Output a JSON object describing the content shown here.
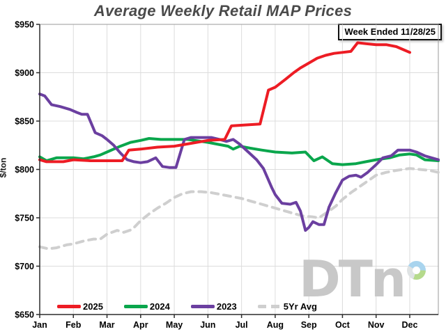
{
  "annotation": "Week Ended 11/28/25",
  "watermark": {
    "text": "DTn"
  },
  "chart_data": {
    "type": "line",
    "title": "Average Weekly Retail MAP Prices",
    "xlabel": "",
    "ylabel": "$/ton",
    "x_categories": [
      "Jan",
      "Feb",
      "Mar",
      "Apr",
      "May",
      "Jun",
      "Jul",
      "Aug",
      "Sep",
      "Oct",
      "Nov",
      "Dec"
    ],
    "x_max": 11.85,
    "ylim": [
      650,
      950
    ],
    "y_ticks": [
      650,
      700,
      750,
      800,
      850,
      900,
      950
    ],
    "y_tick_labels": [
      "$650",
      "$700",
      "$750",
      "$800",
      "$850",
      "$900",
      "$950"
    ],
    "grid": true,
    "legend_position": "bottom-left-inside",
    "series": [
      {
        "name": "2025",
        "color": "#ed1c24",
        "style": "solid",
        "z": 4,
        "points": [
          [
            0,
            810
          ],
          [
            0.2,
            808
          ],
          [
            0.45,
            808
          ],
          [
            0.7,
            808
          ],
          [
            1,
            810
          ],
          [
            1.5,
            809
          ],
          [
            2,
            809
          ],
          [
            2.45,
            809
          ],
          [
            2.65,
            820
          ],
          [
            3,
            821
          ],
          [
            3.5,
            823
          ],
          [
            4,
            824
          ],
          [
            4.5,
            827
          ],
          [
            5,
            830
          ],
          [
            5.5,
            831
          ],
          [
            5.7,
            845
          ],
          [
            6.1,
            846
          ],
          [
            6.55,
            847
          ],
          [
            6.8,
            882
          ],
          [
            7,
            885
          ],
          [
            7.3,
            893
          ],
          [
            7.55,
            900
          ],
          [
            7.75,
            905
          ],
          [
            8,
            910
          ],
          [
            8.25,
            915
          ],
          [
            8.5,
            918
          ],
          [
            8.75,
            920
          ],
          [
            9,
            921
          ],
          [
            9.25,
            922
          ],
          [
            9.45,
            931
          ],
          [
            9.7,
            930
          ],
          [
            10,
            929
          ],
          [
            10.3,
            929
          ],
          [
            10.6,
            927
          ],
          [
            10.8,
            924
          ],
          [
            11,
            921
          ]
        ]
      },
      {
        "name": "2024",
        "color": "#0aa64c",
        "style": "solid",
        "z": 2,
        "points": [
          [
            0,
            813
          ],
          [
            0.2,
            809
          ],
          [
            0.5,
            812
          ],
          [
            0.8,
            812
          ],
          [
            1,
            812
          ],
          [
            1.3,
            811
          ],
          [
            1.6,
            813
          ],
          [
            1.8,
            815
          ],
          [
            2,
            818
          ],
          [
            2.4,
            824
          ],
          [
            2.7,
            828
          ],
          [
            3,
            830
          ],
          [
            3.25,
            832
          ],
          [
            3.6,
            831
          ],
          [
            4,
            831
          ],
          [
            4.4,
            831
          ],
          [
            4.8,
            829
          ],
          [
            5,
            828
          ],
          [
            5.3,
            826
          ],
          [
            5.6,
            824
          ],
          [
            5.75,
            821
          ],
          [
            5.95,
            824
          ],
          [
            6.25,
            822
          ],
          [
            6.6,
            820
          ],
          [
            7,
            818
          ],
          [
            7.5,
            817
          ],
          [
            7.9,
            818
          ],
          [
            8.15,
            809
          ],
          [
            8.4,
            813
          ],
          [
            8.7,
            806
          ],
          [
            9,
            805
          ],
          [
            9.4,
            806
          ],
          [
            9.7,
            808
          ],
          [
            10,
            810
          ],
          [
            10.4,
            812
          ],
          [
            10.7,
            815
          ],
          [
            11,
            816
          ],
          [
            11.2,
            815
          ],
          [
            11.45,
            810
          ],
          [
            11.85,
            809
          ]
        ]
      },
      {
        "name": "2023",
        "color": "#6b3fa0",
        "style": "solid",
        "z": 3,
        "points": [
          [
            0,
            878
          ],
          [
            0.15,
            876
          ],
          [
            0.35,
            867
          ],
          [
            0.6,
            865
          ],
          [
            0.9,
            862
          ],
          [
            1.1,
            859
          ],
          [
            1.25,
            857
          ],
          [
            1.42,
            857
          ],
          [
            1.65,
            838
          ],
          [
            1.85,
            835
          ],
          [
            2,
            831
          ],
          [
            2.2,
            825
          ],
          [
            2.4,
            817
          ],
          [
            2.6,
            810
          ],
          [
            2.8,
            808
          ],
          [
            3,
            807
          ],
          [
            3.2,
            808
          ],
          [
            3.45,
            812
          ],
          [
            3.65,
            803
          ],
          [
            3.85,
            802
          ],
          [
            4.05,
            802
          ],
          [
            4.3,
            831
          ],
          [
            4.5,
            833
          ],
          [
            4.8,
            833
          ],
          [
            5.1,
            833
          ],
          [
            5.35,
            831
          ],
          [
            5.55,
            829
          ],
          [
            5.75,
            831
          ],
          [
            5.95,
            826
          ],
          [
            6.2,
            818
          ],
          [
            6.45,
            810
          ],
          [
            6.65,
            801
          ],
          [
            6.9,
            781
          ],
          [
            7,
            774
          ],
          [
            7.2,
            765
          ],
          [
            7.45,
            764
          ],
          [
            7.62,
            766
          ],
          [
            7.75,
            757
          ],
          [
            7.9,
            737
          ],
          [
            8,
            740
          ],
          [
            8.12,
            746
          ],
          [
            8.3,
            743
          ],
          [
            8.45,
            743
          ],
          [
            8.6,
            761
          ],
          [
            8.8,
            776
          ],
          [
            9,
            789
          ],
          [
            9.2,
            793
          ],
          [
            9.4,
            794
          ],
          [
            9.55,
            792
          ],
          [
            9.75,
            797
          ],
          [
            10,
            805
          ],
          [
            10.2,
            812
          ],
          [
            10.45,
            814
          ],
          [
            10.65,
            820
          ],
          [
            11,
            820
          ],
          [
            11.2,
            818
          ],
          [
            11.45,
            814
          ],
          [
            11.65,
            812
          ],
          [
            11.85,
            810
          ]
        ]
      },
      {
        "name": "5Yr Avg",
        "color": "#cfcfcf",
        "style": "dashed",
        "z": 1,
        "points": [
          [
            0,
            720
          ],
          [
            0.25,
            718
          ],
          [
            0.5,
            719
          ],
          [
            0.8,
            722
          ],
          [
            1,
            723
          ],
          [
            1.3,
            726
          ],
          [
            1.6,
            728
          ],
          [
            1.8,
            728
          ],
          [
            2,
            733
          ],
          [
            2.3,
            737
          ],
          [
            2.5,
            735
          ],
          [
            2.75,
            738
          ],
          [
            3,
            747
          ],
          [
            3.25,
            754
          ],
          [
            3.5,
            760
          ],
          [
            3.75,
            765
          ],
          [
            4,
            771
          ],
          [
            4.25,
            775
          ],
          [
            4.5,
            777
          ],
          [
            4.8,
            777
          ],
          [
            5.1,
            776
          ],
          [
            5.4,
            774
          ],
          [
            5.7,
            772
          ],
          [
            6,
            770
          ],
          [
            6.3,
            767
          ],
          [
            6.6,
            764
          ],
          [
            7,
            760
          ],
          [
            7.4,
            756
          ],
          [
            7.8,
            752
          ],
          [
            8.1,
            751
          ],
          [
            8.3,
            750
          ],
          [
            8.6,
            757
          ],
          [
            8.8,
            762
          ],
          [
            9,
            769
          ],
          [
            9.25,
            776
          ],
          [
            9.5,
            782
          ],
          [
            9.75,
            788
          ],
          [
            10,
            794
          ],
          [
            10.3,
            797
          ],
          [
            10.6,
            799
          ],
          [
            11,
            801
          ],
          [
            11.3,
            800
          ],
          [
            11.6,
            799
          ],
          [
            11.85,
            797
          ]
        ]
      }
    ]
  }
}
